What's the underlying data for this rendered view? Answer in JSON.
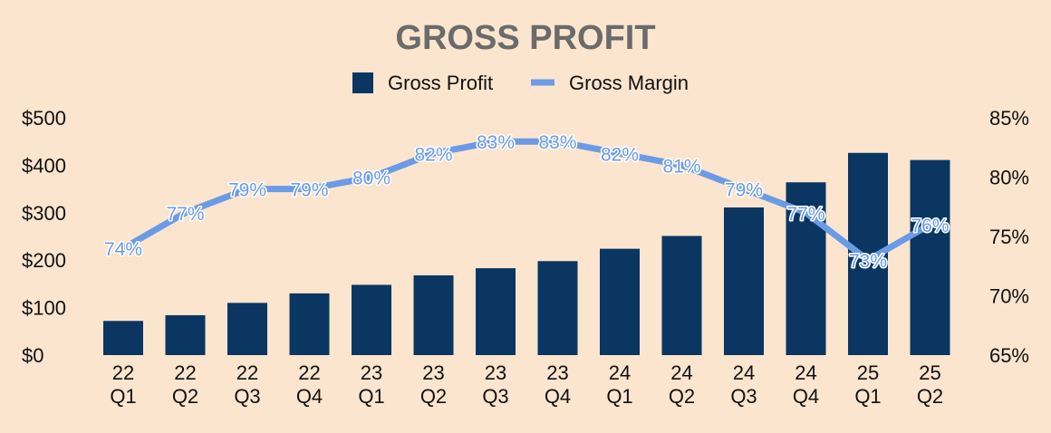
{
  "chart_data": {
    "type": "bar+line",
    "title": "GROSS PROFIT",
    "legend": [
      {
        "name": "Gross Profit",
        "kind": "bar",
        "color": "#0a3661"
      },
      {
        "name": "Gross Margin",
        "kind": "line",
        "color": "#6b9be6"
      }
    ],
    "legend_position": "top-center",
    "categories": [
      [
        "22",
        "Q1"
      ],
      [
        "22",
        "Q2"
      ],
      [
        "22",
        "Q3"
      ],
      [
        "22",
        "Q4"
      ],
      [
        "23",
        "Q1"
      ],
      [
        "23",
        "Q2"
      ],
      [
        "23",
        "Q3"
      ],
      [
        "23",
        "Q4"
      ],
      [
        "24",
        "Q1"
      ],
      [
        "24",
        "Q2"
      ],
      [
        "24",
        "Q3"
      ],
      [
        "24",
        "Q4"
      ],
      [
        "25",
        "Q1"
      ],
      [
        "25",
        "Q2"
      ]
    ],
    "series": [
      {
        "name": "Gross Profit",
        "type": "bar",
        "axis": "left",
        "values": [
          72,
          84,
          110,
          130,
          148,
          168,
          183,
          198,
          224,
          251,
          311,
          364,
          426,
          411
        ]
      },
      {
        "name": "Gross Margin",
        "type": "line",
        "axis": "right",
        "values": [
          74,
          77,
          79,
          79,
          80,
          82,
          83,
          83,
          82,
          81,
          79,
          77,
          73,
          76
        ],
        "labels": [
          "74%",
          "77%",
          "79%",
          "79%",
          "80%",
          "82%",
          "83%",
          "83%",
          "82%",
          "81%",
          "79%",
          "77%",
          "73%",
          "76%"
        ]
      }
    ],
    "y_left": {
      "min": 0,
      "max": 500,
      "ticks": [
        0,
        100,
        200,
        300,
        400,
        500
      ],
      "tick_labels": [
        "$0",
        "$100",
        "$200",
        "$300",
        "$400",
        "$500"
      ]
    },
    "y_right": {
      "min": 65,
      "max": 85,
      "ticks": [
        65,
        70,
        75,
        80,
        85
      ],
      "tick_labels": [
        "65%",
        "70%",
        "75%",
        "80%",
        "85%"
      ]
    },
    "grid": false
  }
}
